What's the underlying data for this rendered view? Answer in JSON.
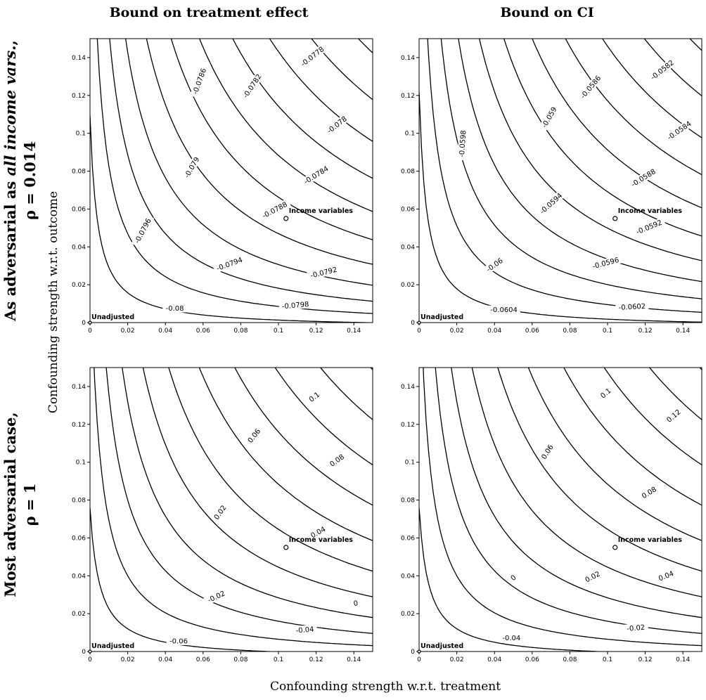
{
  "figure": {
    "col_titles": [
      "Bound on treatment effect",
      "Bound on CI"
    ],
    "row_titles": [
      {
        "line1_prefix": "As adversarial as ",
        "line1_italic": "all income vars.",
        "line1_suffix": ",",
        "line2": "ρ = 0.014"
      },
      {
        "line1_prefix": "Most adversarial case,",
        "line1_italic": "",
        "line1_suffix": "",
        "line2": "ρ = 1"
      }
    ],
    "xlabel": "Confounding strength w.r.t. treatment",
    "ylabel": "Confounding strength w.r.t. outcome"
  },
  "chart_data": [
    {
      "type": "contour",
      "panel": "top-left",
      "xlim": [
        0,
        0.15
      ],
      "ylim": [
        0,
        0.15
      ],
      "xticks": [
        0,
        0.02,
        0.04,
        0.06,
        0.08,
        0.1,
        0.12,
        0.14
      ],
      "yticks": [
        0,
        0.02,
        0.04,
        0.06,
        0.08,
        0.1,
        0.12,
        0.14
      ],
      "xtick_labels": [
        "0",
        "0.02",
        "0.04",
        "0.06",
        "0.08",
        "0.1",
        "0.12",
        "0.14"
      ],
      "ytick_labels": [
        "0",
        "0.02",
        "0.04",
        "0.06",
        "0.08",
        "0.1",
        "0.12",
        "0.14"
      ],
      "contour_labels": [
        {
          "text": "-0.0778",
          "x": 0.118,
          "y": 0.1406,
          "angle": -38
        },
        {
          "text": "-0.0782",
          "x": 0.086,
          "y": 0.125,
          "angle": -56
        },
        {
          "text": "-0.0786",
          "x": 0.058,
          "y": 0.1275,
          "angle": -70
        },
        {
          "text": "-0.078",
          "x": 0.131,
          "y": 0.1045,
          "angle": -38
        },
        {
          "text": "-0.0784",
          "x": 0.12,
          "y": 0.078,
          "angle": -32
        },
        {
          "text": "-0.079",
          "x": 0.054,
          "y": 0.082,
          "angle": -60
        },
        {
          "text": "-0.0788",
          "x": 0.098,
          "y": 0.0595,
          "angle": -28
        },
        {
          "text": "-0.0796",
          "x": 0.028,
          "y": 0.0485,
          "angle": -62
        },
        {
          "text": "-0.0794",
          "x": 0.074,
          "y": 0.031,
          "angle": -20
        },
        {
          "text": "-0.0792",
          "x": 0.124,
          "y": 0.0265,
          "angle": -14
        },
        {
          "text": "-0.0798",
          "x": 0.109,
          "y": 0.0092,
          "angle": -5
        },
        {
          "text": "-0.08",
          "x": 0.045,
          "y": 0.0076,
          "angle": 0
        }
      ],
      "points": [
        {
          "label": "Income variables",
          "x": 0.104,
          "y": 0.055
        },
        {
          "label": "Unadjusted",
          "x": 0,
          "y": 0
        }
      ]
    },
    {
      "type": "contour",
      "panel": "top-right",
      "xlim": [
        0,
        0.15
      ],
      "ylim": [
        0,
        0.15
      ],
      "xticks": [
        0,
        0.02,
        0.04,
        0.06,
        0.08,
        0.1,
        0.12,
        0.14
      ],
      "yticks": [
        0,
        0.02,
        0.04,
        0.06,
        0.08,
        0.1,
        0.12,
        0.14
      ],
      "xtick_labels": [
        "0",
        "0.02",
        "0.04",
        "0.06",
        "0.08",
        "0.1",
        "0.12",
        "0.14"
      ],
      "ytick_labels": [
        "0",
        "0.02",
        "0.04",
        "0.06",
        "0.08",
        "0.1",
        "0.12",
        "0.14"
      ],
      "contour_labels": [
        {
          "text": "-0.0582",
          "x": 0.129,
          "y": 0.1335,
          "angle": -38
        },
        {
          "text": "-0.0586",
          "x": 0.091,
          "y": 0.1245,
          "angle": -50
        },
        {
          "text": "-0.059",
          "x": 0.069,
          "y": 0.1085,
          "angle": -60
        },
        {
          "text": "-0.0584",
          "x": 0.138,
          "y": 0.1015,
          "angle": -35
        },
        {
          "text": "-0.0598",
          "x": 0.023,
          "y": 0.0945,
          "angle": -86
        },
        {
          "text": "-0.0588",
          "x": 0.119,
          "y": 0.0765,
          "angle": -32
        },
        {
          "text": "-0.0594",
          "x": 0.07,
          "y": 0.063,
          "angle": -42
        },
        {
          "text": "-0.0592",
          "x": 0.122,
          "y": 0.0505,
          "angle": -22
        },
        {
          "text": "-0.06",
          "x": 0.04,
          "y": 0.0305,
          "angle": -35
        },
        {
          "text": "-0.0596",
          "x": 0.099,
          "y": 0.0315,
          "angle": -15
        },
        {
          "text": "-0.0604",
          "x": 0.045,
          "y": 0.0068,
          "angle": 0
        },
        {
          "text": "-0.0602",
          "x": 0.113,
          "y": 0.0084,
          "angle": -3
        }
      ],
      "points": [
        {
          "label": "Income variables",
          "x": 0.104,
          "y": 0.055
        },
        {
          "label": "Unadjusted",
          "x": 0,
          "y": 0
        }
      ]
    },
    {
      "type": "contour",
      "panel": "bottom-left",
      "xlim": [
        0,
        0.15
      ],
      "ylim": [
        0,
        0.15
      ],
      "xticks": [
        0,
        0.02,
        0.04,
        0.06,
        0.08,
        0.1,
        0.12,
        0.14
      ],
      "yticks": [
        0,
        0.02,
        0.04,
        0.06,
        0.08,
        0.1,
        0.12,
        0.14
      ],
      "xtick_labels": [
        "0",
        "0.02",
        "0.04",
        "0.06",
        "0.08",
        "0.1",
        "0.12",
        "0.14"
      ],
      "ytick_labels": [
        "0",
        "0.02",
        "0.04",
        "0.06",
        "0.08",
        "0.1",
        "0.12",
        "0.14"
      ],
      "contour_labels": [
        {
          "text": "0.1",
          "x": 0.119,
          "y": 0.1345,
          "angle": -38
        },
        {
          "text": "0.06",
          "x": 0.087,
          "y": 0.114,
          "angle": -52
        },
        {
          "text": "0.08",
          "x": 0.131,
          "y": 0.101,
          "angle": -35
        },
        {
          "text": "0.02",
          "x": 0.069,
          "y": 0.0735,
          "angle": -55
        },
        {
          "text": "0.04",
          "x": 0.121,
          "y": 0.063,
          "angle": -30
        },
        {
          "text": "-0.02",
          "x": 0.067,
          "y": 0.029,
          "angle": -25
        },
        {
          "text": "0",
          "x": 0.141,
          "y": 0.0255,
          "angle": -10
        },
        {
          "text": "-0.04",
          "x": 0.114,
          "y": 0.0115,
          "angle": -5
        },
        {
          "text": "-0.06",
          "x": 0.047,
          "y": 0.0056,
          "angle": 0
        }
      ],
      "points": [
        {
          "label": "Income variables",
          "x": 0.104,
          "y": 0.055
        },
        {
          "label": "Unadjusted",
          "x": 0,
          "y": 0
        }
      ]
    },
    {
      "type": "contour",
      "panel": "bottom-right",
      "xlim": [
        0,
        0.15
      ],
      "ylim": [
        0,
        0.15
      ],
      "xticks": [
        0,
        0.02,
        0.04,
        0.06,
        0.08,
        0.1,
        0.12,
        0.14
      ],
      "yticks": [
        0,
        0.02,
        0.04,
        0.06,
        0.08,
        0.1,
        0.12,
        0.14
      ],
      "xtick_labels": [
        "0",
        "0.02",
        "0.04",
        "0.06",
        "0.08",
        "0.1",
        "0.12",
        "0.14"
      ],
      "ytick_labels": [
        "0",
        "0.02",
        "0.04",
        "0.06",
        "0.08",
        "0.1",
        "0.12",
        "0.14"
      ],
      "contour_labels": [
        {
          "text": "0.1",
          "x": 0.099,
          "y": 0.1365,
          "angle": -40
        },
        {
          "text": "0.12",
          "x": 0.135,
          "y": 0.1245,
          "angle": -40
        },
        {
          "text": "0.06",
          "x": 0.068,
          "y": 0.1055,
          "angle": -58
        },
        {
          "text": "0.08",
          "x": 0.122,
          "y": 0.084,
          "angle": -32
        },
        {
          "text": "0.04",
          "x": 0.131,
          "y": 0.04,
          "angle": -22
        },
        {
          "text": "0",
          "x": 0.05,
          "y": 0.039,
          "angle": -40
        },
        {
          "text": "0.02",
          "x": 0.092,
          "y": 0.0395,
          "angle": -28
        },
        {
          "text": "-0.02",
          "x": 0.115,
          "y": 0.0125,
          "angle": -5
        },
        {
          "text": "-0.04",
          "x": 0.049,
          "y": 0.0072,
          "angle": 0
        }
      ],
      "points": [
        {
          "label": "Income variables",
          "x": 0.104,
          "y": 0.055
        },
        {
          "label": "Unadjusted",
          "x": 0,
          "y": 0
        }
      ]
    }
  ]
}
